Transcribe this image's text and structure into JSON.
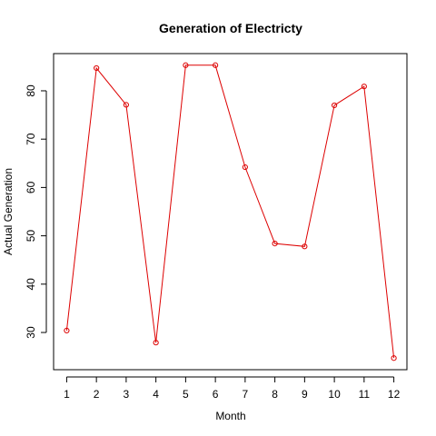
{
  "chart_data": {
    "type": "line",
    "title": "Generation of Electricty",
    "xlabel": "Month",
    "ylabel": "Actual Generation",
    "x": [
      1,
      2,
      3,
      4,
      5,
      6,
      7,
      8,
      9,
      10,
      11,
      12
    ],
    "series": [
      {
        "values": [
          30.4,
          84.7,
          77.1,
          27.9,
          85.3,
          85.3,
          64.2,
          48.4,
          47.8,
          77.0,
          80.9,
          24.7
        ]
      }
    ],
    "xlim": [
      0.56,
      12.44
    ],
    "ylim": [
      22.3,
      87.7
    ],
    "x_ticks": [
      1,
      2,
      3,
      4,
      5,
      6,
      7,
      8,
      9,
      10,
      11,
      12
    ],
    "y_ticks": [
      30,
      40,
      50,
      60,
      70,
      80
    ],
    "grid": false,
    "legend": "none",
    "colors": {
      "series": "#dd0000",
      "axis": "#000000",
      "background": "#ffffff"
    }
  }
}
